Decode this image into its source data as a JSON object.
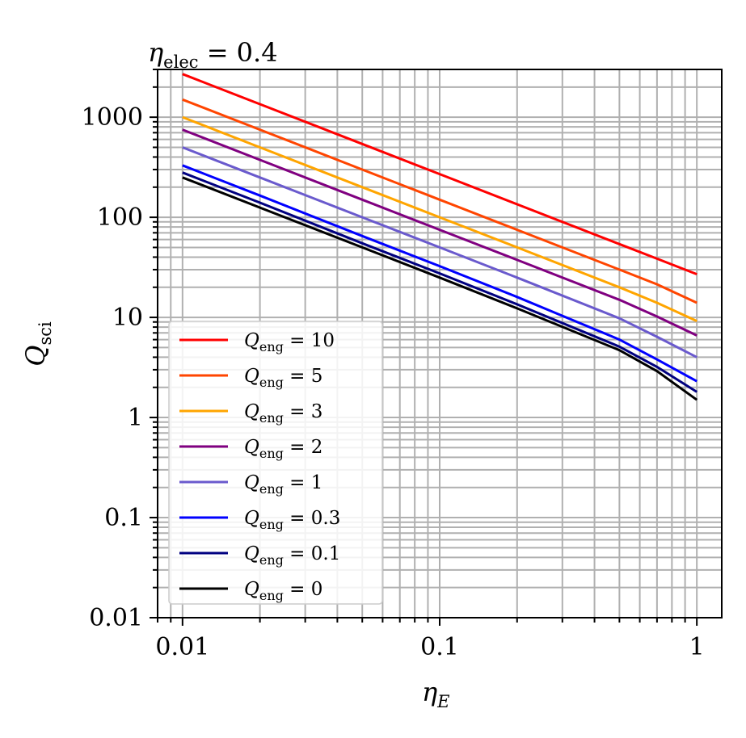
{
  "chart_data": {
    "type": "line",
    "title": "η_elec = 0.4",
    "xlabel": "η_E",
    "ylabel": "Q_sci",
    "xscale": "log",
    "yscale": "log",
    "xlim": [
      0.008,
      1.25
    ],
    "ylim": [
      0.01,
      3000
    ],
    "grid": true,
    "x_ticks": [
      0.01,
      0.1,
      1
    ],
    "x_tick_labels": [
      "0.01",
      "0.1",
      "1"
    ],
    "y_ticks": [
      0.01,
      0.1,
      1,
      10,
      100,
      1000
    ],
    "y_tick_labels": [
      "0.01",
      "0.1",
      "1",
      "10",
      "100",
      "1000"
    ],
    "legend_position": "lower-left",
    "x": [
      0.01,
      0.02,
      0.05,
      0.1,
      0.2,
      0.5,
      0.7,
      1
    ],
    "series": [
      {
        "name": "Q_eng = 10",
        "label_sub": "eng",
        "label_value": "10",
        "color": "#ff0000",
        "values": [
          2700,
          1350,
          540,
          270,
          135,
          54,
          38.6,
          27
        ]
      },
      {
        "name": "Q_eng = 5",
        "label_sub": "eng",
        "label_value": "5",
        "color": "#ff4500",
        "values": [
          1500,
          750,
          300,
          150,
          75,
          30,
          21.4,
          14
        ]
      },
      {
        "name": "Q_eng = 3",
        "label_sub": "eng",
        "label_value": "3",
        "color": "#ffa500",
        "values": [
          1000,
          500,
          200,
          100,
          50,
          20,
          14,
          9.2
        ]
      },
      {
        "name": "Q_eng = 2",
        "label_sub": "eng",
        "label_value": "2",
        "color": "#800080",
        "values": [
          750,
          375,
          150,
          75,
          37.5,
          15,
          10.2,
          6.6
        ]
      },
      {
        "name": "Q_eng = 1",
        "label_sub": "eng",
        "label_value": "1",
        "color": "#6a5acd",
        "values": [
          500,
          250,
          100,
          50,
          25,
          9.8,
          6.4,
          4.0
        ]
      },
      {
        "name": "Q_eng = 0.3",
        "label_sub": "eng",
        "label_value": "0.3",
        "color": "#0000ff",
        "values": [
          330,
          165,
          65,
          32.5,
          16,
          6.0,
          3.8,
          2.3
        ]
      },
      {
        "name": "Q_eng = 0.1",
        "label_sub": "eng",
        "label_value": "0.1",
        "color": "#000080",
        "values": [
          280,
          140,
          55,
          27.5,
          13.5,
          5.1,
          3.2,
          1.8
        ]
      },
      {
        "name": "Q_eng = 0",
        "label_sub": "eng",
        "label_value": "0",
        "color": "#000000",
        "values": [
          250,
          125,
          50,
          25,
          12.3,
          4.7,
          2.9,
          1.5
        ]
      }
    ]
  }
}
